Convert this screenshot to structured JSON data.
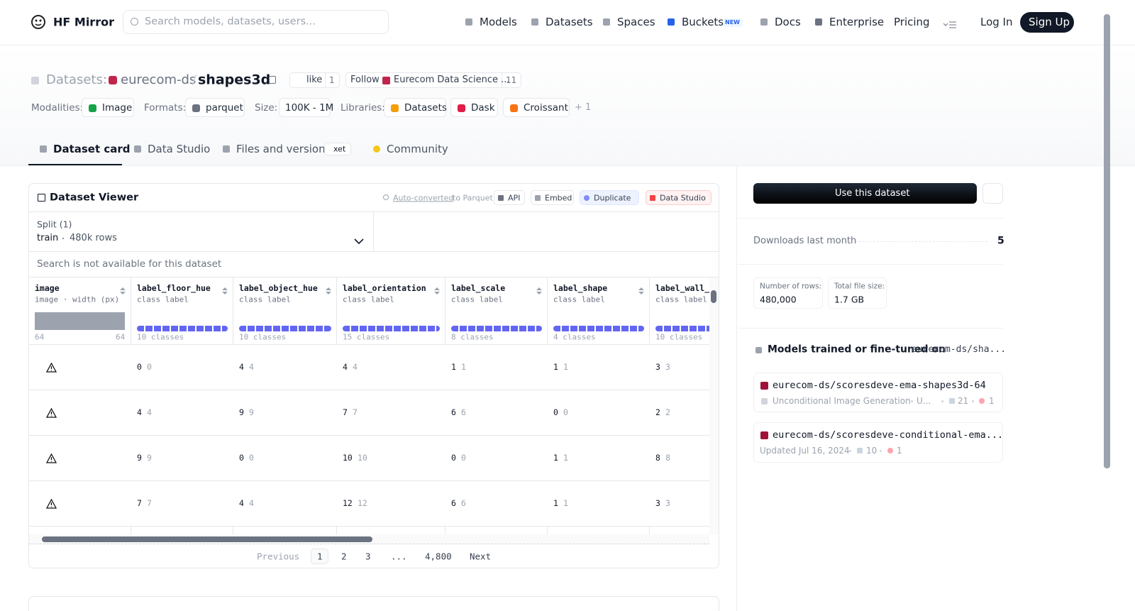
{
  "nav": {
    "brand": "HF Mirror",
    "search_placeholder": "Search models, datasets, users...",
    "links": [
      "Models",
      "Datasets",
      "Spaces",
      "Buckets",
      "Docs",
      "Enterprise",
      "Pricing"
    ],
    "buckets_badge": "NEW",
    "login": "Log In",
    "signup": "Sign Up"
  },
  "header": {
    "section": "Datasets:",
    "owner": "eurecom-ds",
    "separator": "/",
    "name": "shapes3d",
    "like": "like",
    "likes": "1",
    "follow": "Follow",
    "follow_org": "Eurecom Data Science ...",
    "followers": "11",
    "tags": [
      {
        "label": "Modalities:",
        "items": [
          "Image"
        ]
      },
      {
        "label": "Formats:",
        "items": [
          "parquet"
        ]
      },
      {
        "label": "Size:",
        "items": [
          "100K - 1M"
        ]
      },
      {
        "label": "Libraries:",
        "items": [
          "Datasets",
          "Dask",
          "Croissant"
        ]
      }
    ],
    "more": "+ 1"
  },
  "tabs": [
    "Dataset card",
    "Data Studio",
    "Files and versions",
    "Community"
  ],
  "xet": "xet",
  "viewer": {
    "title": "Dataset Viewer",
    "auto": "Auto-converted",
    "auto_suffix": "to Parquet",
    "buttons": [
      "API",
      "Embed",
      "Duplicate",
      "Data Studio"
    ],
    "split_label": "Split (1)",
    "split": "train",
    "split_rows": "480k rows",
    "search_note": "Search is not available for this dataset",
    "columns": [
      {
        "name": "image",
        "type": "image · width (px)",
        "min": "64",
        "max": "64"
      },
      {
        "name": "label_floor_hue",
        "type": "class label",
        "classes": "10 classes"
      },
      {
        "name": "label_object_hue",
        "type": "class label",
        "classes": "10 classes"
      },
      {
        "name": "label_orientation",
        "type": "class label",
        "classes": "15 classes"
      },
      {
        "name": "label_scale",
        "type": "class label",
        "classes": "8 classes"
      },
      {
        "name": "label_shape",
        "type": "class label",
        "classes": "4 classes"
      },
      {
        "name": "label_wall_hue",
        "type": "class label",
        "classes": "10 classes"
      }
    ],
    "rows": [
      [
        {
          "value": "0",
          "label": "0"
        },
        {
          "value": "4",
          "label": "4"
        },
        {
          "value": "4",
          "label": "4"
        },
        {
          "value": "1",
          "label": "1"
        },
        {
          "value": "1",
          "label": "1"
        },
        {
          "value": "3",
          "label": "3"
        }
      ],
      [
        {
          "value": "4",
          "label": "4"
        },
        {
          "value": "9",
          "label": "9"
        },
        {
          "value": "7",
          "label": "7"
        },
        {
          "value": "6",
          "label": "6"
        },
        {
          "value": "0",
          "label": "0"
        },
        {
          "value": "2",
          "label": "2"
        }
      ],
      [
        {
          "value": "9",
          "label": "9"
        },
        {
          "value": "0",
          "label": "0"
        },
        {
          "value": "10",
          "label": "10"
        },
        {
          "value": "0",
          "label": "0"
        },
        {
          "value": "1",
          "label": "1"
        },
        {
          "value": "8",
          "label": "8"
        }
      ],
      [
        {
          "value": "7",
          "label": "7"
        },
        {
          "value": "4",
          "label": "4"
        },
        {
          "value": "12",
          "label": "12"
        },
        {
          "value": "6",
          "label": "6"
        },
        {
          "value": "1",
          "label": "1"
        },
        {
          "value": "3",
          "label": "3"
        }
      ]
    ],
    "pagination": {
      "prev": "Previous",
      "pages": [
        "1",
        "2",
        "3",
        "...",
        "4,800"
      ],
      "next": "Next"
    }
  },
  "sidebar": {
    "use": "Use this dataset",
    "downloads_label": "Downloads last month",
    "downloads": "5",
    "rows_label": "Number of rows:",
    "rows": "480,000",
    "size_label": "Total file size:",
    "size": "1.7 GB",
    "models_title": "Models trained or fine-tuned on",
    "models_repo": "eurecom-ds/sha...",
    "models": [
      {
        "name": "eurecom-ds/scoresdeve-ema-shapes3d-64",
        "task": "Unconditional Image Generation",
        "updated": "U...",
        "downloads": "21",
        "likes": "1"
      },
      {
        "name": "eurecom-ds/scoresdeve-conditional-ema...",
        "updated": "Updated Jul 16, 2024",
        "downloads": "10",
        "likes": "1"
      }
    ]
  }
}
